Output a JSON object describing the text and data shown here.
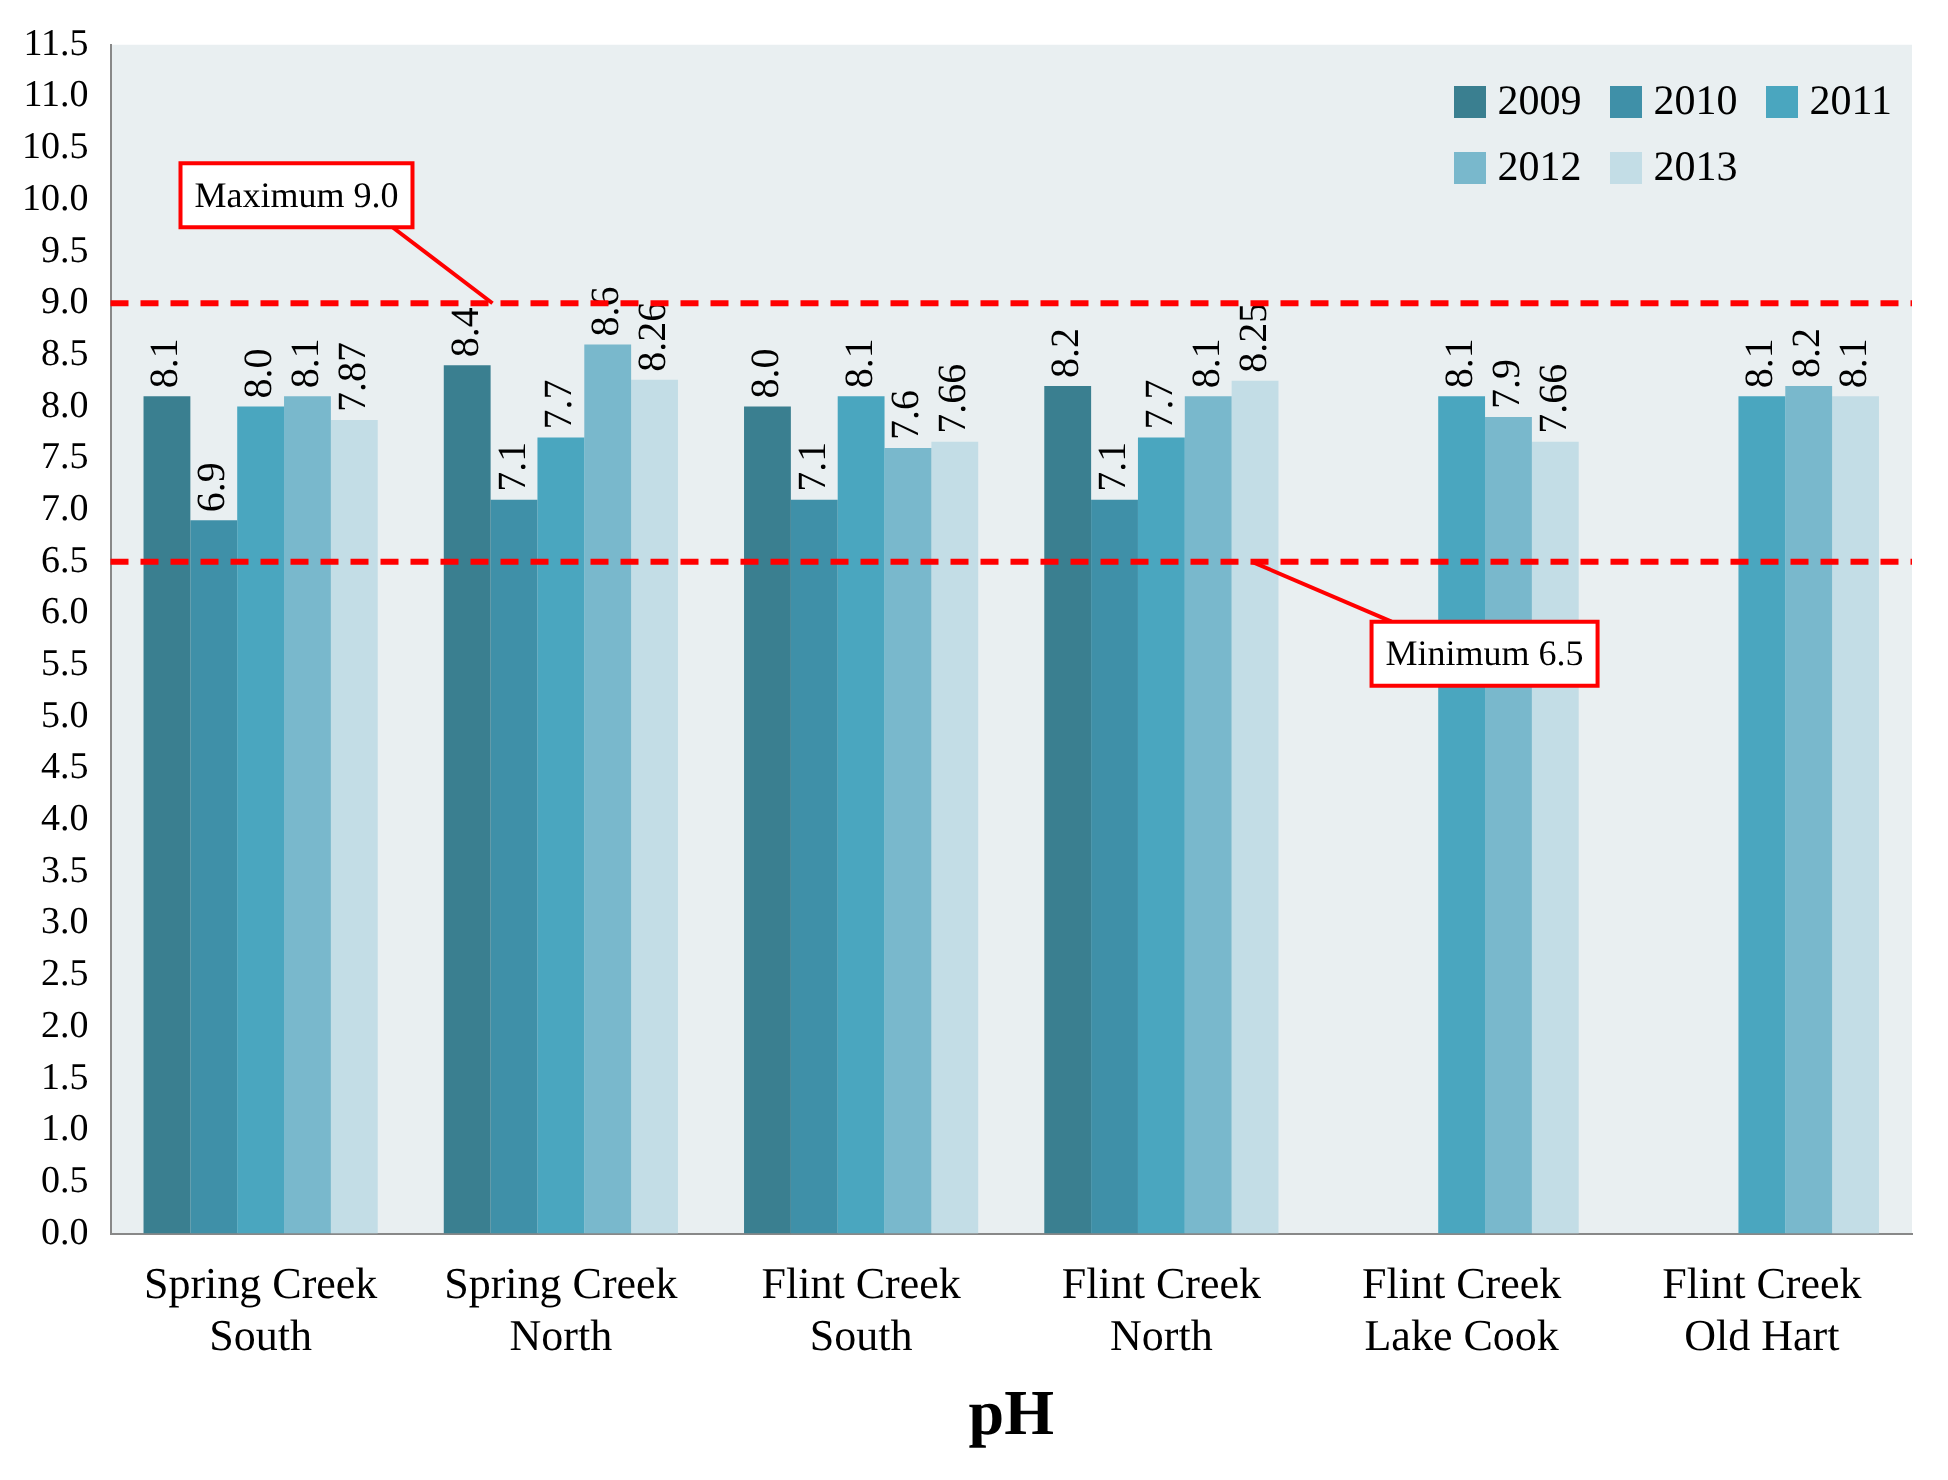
{
  "chart_data": {
    "type": "bar",
    "xlabel": "pH",
    "categories": [
      "Spring Creek South",
      "Spring Creek North",
      "Flint Creek South",
      "Flint Creek North",
      "Flint Creek Lake Cook",
      "Flint Creek Old Hart"
    ],
    "series": [
      {
        "name": "2009",
        "color": "#3a7f90",
        "values": [
          8.1,
          8.4,
          8.0,
          8.2,
          null,
          null
        ],
        "value_labels": [
          "8.1",
          "8.4",
          "8.0",
          "8.2",
          null,
          null
        ]
      },
      {
        "name": "2010",
        "color": "#3f90a8",
        "values": [
          6.9,
          7.1,
          7.1,
          7.1,
          null,
          null
        ],
        "value_labels": [
          "6.9",
          "7.1",
          "7.1",
          "7.1",
          null,
          null
        ]
      },
      {
        "name": "2011",
        "color": "#4aa6bf",
        "values": [
          8.0,
          7.7,
          8.1,
          7.7,
          8.1,
          8.1
        ],
        "value_labels": [
          "8.0",
          "7.7",
          "8.1",
          "7.7",
          "8.1",
          "8.1"
        ]
      },
      {
        "name": "2012",
        "color": "#79b8cc",
        "values": [
          8.1,
          8.6,
          7.6,
          8.1,
          7.9,
          8.2
        ],
        "value_labels": [
          "8.1",
          "8.6",
          "7.6",
          "8.1",
          "7.9",
          "8.2"
        ]
      },
      {
        "name": "2013",
        "color": "#c3dde6",
        "values": [
          7.87,
          8.26,
          7.66,
          8.25,
          7.66,
          8.1
        ],
        "value_labels": [
          "7.87",
          "8.26",
          "7.66",
          "8.25",
          "7.66",
          "8.1"
        ]
      }
    ],
    "ylim": [
      0,
      11.5
    ],
    "yticks": [
      {
        "value": 0,
        "label": "0.0"
      },
      {
        "value": 0.5,
        "label": "0.5"
      },
      {
        "value": 1,
        "label": "1.0"
      },
      {
        "value": 1.5,
        "label": "1.5"
      },
      {
        "value": 2,
        "label": "2.0"
      },
      {
        "value": 2.5,
        "label": "2.5"
      },
      {
        "value": 3,
        "label": "3.0"
      },
      {
        "value": 3.5,
        "label": "3.5"
      },
      {
        "value": 4,
        "label": "4.0"
      },
      {
        "value": 4.5,
        "label": "4.5"
      },
      {
        "value": 5,
        "label": "5.0"
      },
      {
        "value": 5.5,
        "label": "5.5"
      },
      {
        "value": 6,
        "label": "6.0"
      },
      {
        "value": 6.5,
        "label": "6.5"
      },
      {
        "value": 7,
        "label": "7.0"
      },
      {
        "value": 7.5,
        "label": "7.5"
      },
      {
        "value": 8,
        "label": "8.0"
      },
      {
        "value": 8.5,
        "label": "8.5"
      },
      {
        "value": 9,
        "label": "9.0"
      },
      {
        "value": 9.5,
        "label": "9.5"
      },
      {
        "value": 10,
        "label": "10.0"
      },
      {
        "value": 10.5,
        "label": "10.5"
      },
      {
        "value": 11,
        "label": "11.0"
      },
      {
        "value": 11.5,
        "label": "11.5"
      }
    ],
    "ref_lines": [
      {
        "axis": "y",
        "value": 9.0,
        "label": "Maximum 9.0",
        "color": "#ff0000",
        "line_style": "dashed"
      },
      {
        "axis": "y",
        "value": 6.5,
        "label": "Minimum 6.5",
        "color": "#ff0000",
        "line_style": "dashed"
      }
    ],
    "legend": "top right",
    "grid": false
  }
}
